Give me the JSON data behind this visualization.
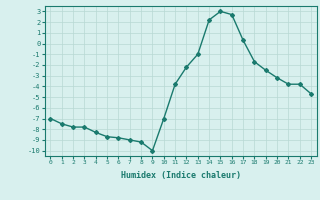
{
  "x": [
    0,
    1,
    2,
    3,
    4,
    5,
    6,
    7,
    8,
    9,
    10,
    11,
    12,
    13,
    14,
    15,
    16,
    17,
    18,
    19,
    20,
    21,
    22,
    23
  ],
  "y": [
    -7,
    -7.5,
    -7.8,
    -7.8,
    -8.3,
    -8.7,
    -8.8,
    -9.0,
    -9.2,
    -10.0,
    -7.0,
    -3.8,
    -2.2,
    -1.0,
    2.2,
    3.0,
    2.7,
    0.3,
    -1.7,
    -2.5,
    -3.2,
    -3.8,
    -3.8,
    -4.7
  ],
  "xlabel": "Humidex (Indice chaleur)",
  "ylim": [
    -10.5,
    3.5
  ],
  "xlim": [
    -0.5,
    23.5
  ],
  "yticks": [
    3,
    2,
    1,
    0,
    -1,
    -2,
    -3,
    -4,
    -5,
    -6,
    -7,
    -8,
    -9,
    -10
  ],
  "xticks": [
    0,
    1,
    2,
    3,
    4,
    5,
    6,
    7,
    8,
    9,
    10,
    11,
    12,
    13,
    14,
    15,
    16,
    17,
    18,
    19,
    20,
    21,
    22,
    23
  ],
  "line_color": "#1a7a6e",
  "bg_color": "#d8f0ee",
  "grid_color": "#b8d8d4",
  "marker": "D",
  "marker_size": 2,
  "line_width": 1.0
}
